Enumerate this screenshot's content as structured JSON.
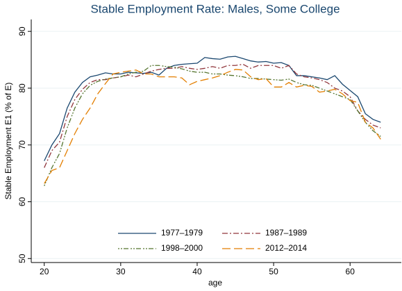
{
  "chart_data": {
    "type": "line",
    "title": "Stable Employment Rate: Males, Some College",
    "x_label": "age",
    "y_label": "Stable Employment E1 (% of E)",
    "x": [
      20,
      21,
      22,
      23,
      24,
      25,
      26,
      27,
      28,
      29,
      30,
      31,
      32,
      33,
      34,
      35,
      36,
      37,
      38,
      39,
      40,
      41,
      42,
      43,
      44,
      45,
      46,
      47,
      48,
      49,
      50,
      51,
      52,
      53,
      54,
      55,
      56,
      57,
      58,
      59,
      60,
      61,
      62,
      63,
      64
    ],
    "series": [
      {
        "name": "1977–1979",
        "color": "#1a476f",
        "values": [
          67.2,
          70,
          72,
          76.5,
          79.3,
          81,
          82,
          82.3,
          82.7,
          82.5,
          82.5,
          82.8,
          82.7,
          82.6,
          82.8,
          82.3,
          83.5,
          84,
          84.2,
          84.3,
          84.4,
          85.4,
          85.2,
          85.1,
          85.5,
          85.6,
          85.2,
          84.8,
          84.6,
          84.7,
          84.4,
          84.5,
          84,
          82.2,
          82.2,
          82,
          81.8,
          81.5,
          82.2,
          80.7,
          79.6,
          78.5,
          75.5,
          74.5,
          74
        ]
      },
      {
        "name": "1987–1989",
        "color": "#90353b",
        "values": [
          66,
          69,
          70.5,
          75,
          78,
          79.8,
          81,
          81.5,
          81.5,
          81.8,
          82,
          82.3,
          82,
          82.5,
          83,
          83.3,
          83.5,
          83.5,
          83.8,
          83.5,
          83.3,
          83.5,
          83.8,
          83.5,
          84,
          84,
          84.2,
          83.5,
          84,
          84,
          84,
          83.5,
          84,
          82.5,
          82,
          81.8,
          81.5,
          81,
          80,
          79.5,
          78.5,
          76,
          74.5,
          73.5,
          73
        ]
      },
      {
        "name": "1998–2000",
        "color": "#55752f",
        "values": [
          62.8,
          66,
          68.5,
          73,
          76.5,
          79,
          80.5,
          81.2,
          81.6,
          81.8,
          82,
          82.5,
          82.8,
          83,
          84,
          84,
          83.8,
          83.7,
          83.4,
          83,
          82.8,
          82.8,
          82.5,
          82.5,
          82.3,
          82.2,
          82,
          81.7,
          81.7,
          81.6,
          81.5,
          81.4,
          81.6,
          81,
          80.6,
          80.5,
          80,
          79.5,
          79,
          78.5,
          78,
          76,
          74,
          72.5,
          71.5
        ]
      },
      {
        "name": "2012–2014",
        "color": "#e37e00",
        "values": [
          63.2,
          65.5,
          66,
          69,
          72,
          74.5,
          76.5,
          79,
          80.8,
          82.5,
          82.8,
          83,
          83.2,
          82.5,
          82.5,
          82,
          82,
          82,
          81.8,
          80.6,
          81.2,
          81.5,
          81.8,
          82.2,
          82.8,
          83.3,
          83.2,
          82,
          81.5,
          81.7,
          80.2,
          80.2,
          81,
          80.2,
          80.5,
          80.3,
          79.3,
          79.5,
          79.8,
          79,
          77.8,
          77.5,
          74,
          73,
          71
        ]
      }
    ],
    "xlim": [
      18.3,
      66.7
    ],
    "xticks": [
      20,
      30,
      40,
      50,
      60
    ],
    "ylim": [
      49.3,
      92.1
    ],
    "yticks": [
      50,
      60,
      70,
      80,
      90
    ],
    "grid": true
  }
}
